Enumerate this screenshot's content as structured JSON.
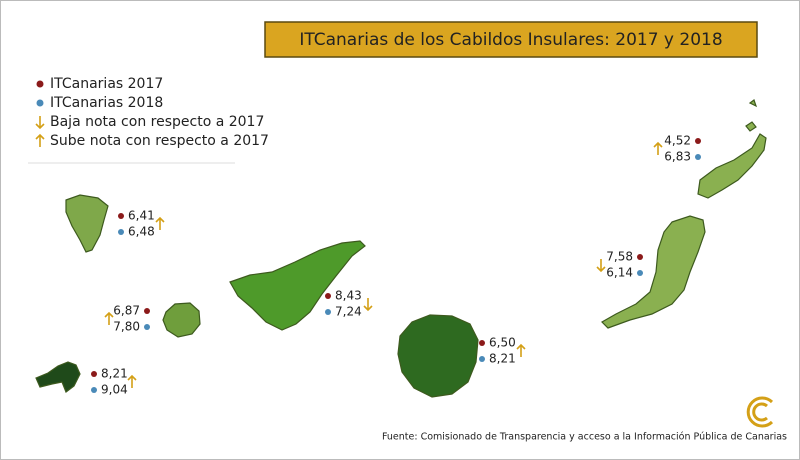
{
  "title": "ITCanarias de los Cabildos Insulares: 2017 y 2018",
  "legend": [
    {
      "label": "ITCanarias 2017",
      "symbol": "dot",
      "color": "#8b1a1a"
    },
    {
      "label": "ITCanarias 2018",
      "symbol": "dot",
      "color": "#4a8ab8"
    },
    {
      "label": "Baja nota con respecto a 2017",
      "symbol": "down",
      "color": "#d4a017"
    },
    {
      "label": "Sube nota con respecto a 2017",
      "symbol": "up",
      "color": "#d4a017"
    }
  ],
  "islands": [
    {
      "value_2017": "6,41",
      "value_2018": "6,48",
      "trend": "up"
    },
    {
      "value_2017": "6,87",
      "value_2018": "7,80",
      "trend": "up"
    },
    {
      "value_2017": "8,21",
      "value_2018": "9,04",
      "trend": "up"
    },
    {
      "value_2017": "8,43",
      "value_2018": "7,24",
      "trend": "down"
    },
    {
      "value_2017": "6,50",
      "value_2018": "8,21",
      "trend": "up"
    },
    {
      "value_2017": "7,58",
      "value_2018": "6,14",
      "trend": "down"
    },
    {
      "value_2017": "4,52",
      "value_2018": "6,83",
      "trend": "up"
    }
  ],
  "source": "Fuente: Comisionado de Transparencia y acceso a la Información Pública de Canarias"
}
